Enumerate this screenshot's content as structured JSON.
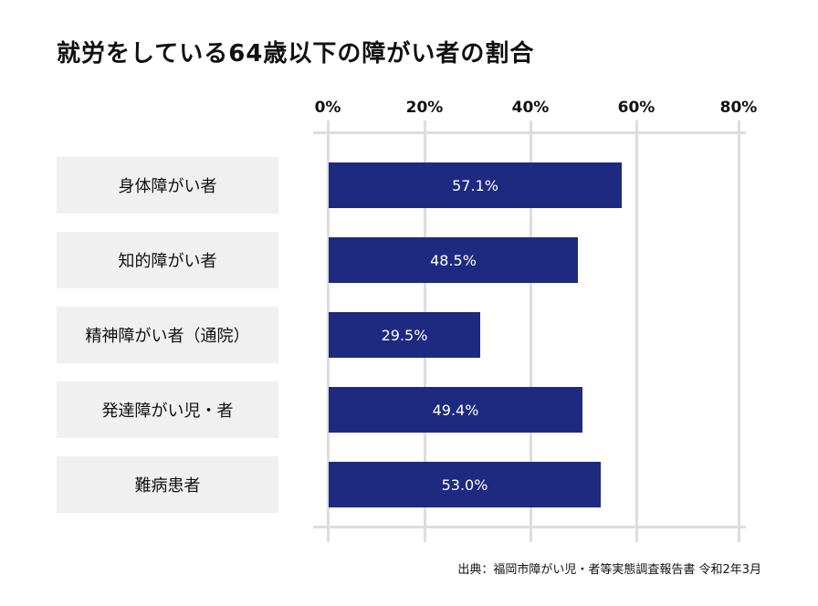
{
  "title": "就労をしている64歳以下の障がい者の割合",
  "axis": {
    "ticks": [
      "0%",
      "20%",
      "40%",
      "60%",
      "80%"
    ]
  },
  "categories": [
    {
      "label": "身体障がい者",
      "value": 57.1,
      "value_label": "57.1%"
    },
    {
      "label": "知的障がい者",
      "value": 48.5,
      "value_label": "48.5%"
    },
    {
      "label": "精神障がい者（通院）",
      "value": 29.5,
      "value_label": "29.5%"
    },
    {
      "label": "発達障がい児・者",
      "value": 49.4,
      "value_label": "49.4%"
    },
    {
      "label": "難病患者",
      "value": 53.0,
      "value_label": "53.0%"
    }
  ],
  "source": "出典：福岡市障がい児・者等実態調査報告書 令和2年3月",
  "colors": {
    "bar": "#1e2a80",
    "grid": "#dddddd",
    "label_bg": "#f0f0f0"
  },
  "chart_data": {
    "type": "bar",
    "orientation": "horizontal",
    "title": "就労をしている64歳以下の障がい者の割合",
    "categories": [
      "身体障がい者",
      "知的障がい者",
      "精神障がい者（通院）",
      "発達障がい児・者",
      "難病患者"
    ],
    "values": [
      57.1,
      48.5,
      29.5,
      49.4,
      53.0
    ],
    "data_labels": [
      "57.1%",
      "48.5%",
      "29.5%",
      "49.4%",
      "53.0%"
    ],
    "xlabel": "",
    "ylabel": "",
    "xlim": [
      0,
      80
    ],
    "x_ticks": [
      "0%",
      "20%",
      "40%",
      "60%",
      "80%"
    ],
    "axis_position": "top",
    "grid": true,
    "legend": null,
    "annotation": "出典：福岡市障がい児・者等実態調査報告書 令和2年3月"
  }
}
